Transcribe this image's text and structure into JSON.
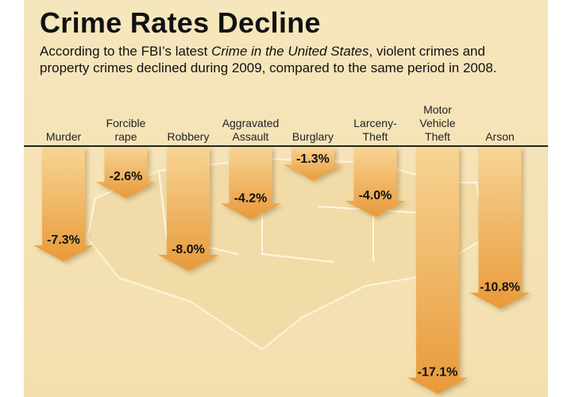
{
  "title": "Crime Rates Decline",
  "subtitle_parts": [
    "According to the FBI’s latest ",
    "Crime in the United States",
    ", violent crimes and property crimes declined during 2009, compared to the same period in 2008."
  ],
  "colors": {
    "background": "#f5e3b5",
    "arrow_top": "#f7d494",
    "arrow_bottom": "#e99a3a",
    "text": "#111111"
  },
  "chart_data": {
    "type": "bar",
    "orientation": "downward arrows",
    "categories": [
      [
        "Murder"
      ],
      [
        "Forcible",
        "rape"
      ],
      [
        "Robbery"
      ],
      [
        "Aggravated",
        "Assault"
      ],
      [
        "Burglary"
      ],
      [
        "Larceny-",
        "Theft"
      ],
      [
        "Motor",
        "Vehicle",
        "Theft"
      ],
      [
        "Arson"
      ]
    ],
    "values": [
      -7.3,
      -2.6,
      -8.0,
      -4.2,
      -1.3,
      -4.0,
      -17.1,
      -10.8
    ],
    "labels": [
      "-7.3%",
      "-2.6%",
      "-8.0%",
      "-4.2%",
      "-1.3%",
      "-4.0%",
      "-17.1%",
      "-10.8%"
    ]
  }
}
